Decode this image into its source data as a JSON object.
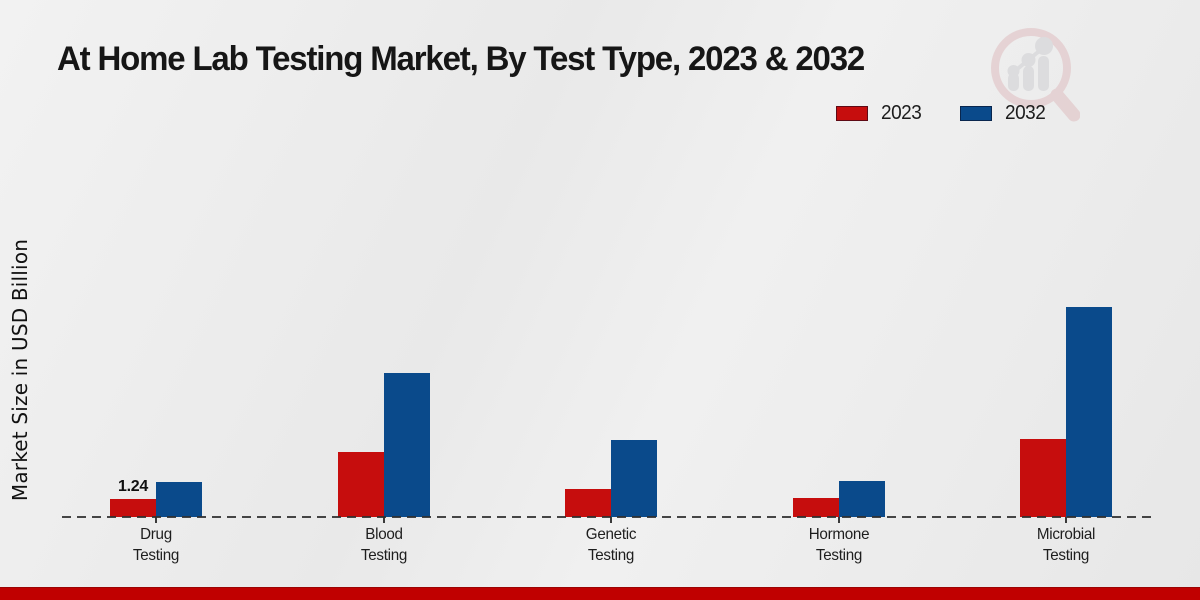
{
  "title": "At Home Lab Testing Market, By Test Type, 2023 & 2032",
  "y_axis_label": "Market Size in USD Billion",
  "legend": {
    "items": [
      {
        "label": "2023",
        "color": "#c60d0d"
      },
      {
        "label": "2032",
        "color": "#0a4a8b"
      }
    ]
  },
  "colors": {
    "bar_2023": "#c60d0d",
    "bar_2032": "#0a4a8b",
    "baseline": "#2e2e2e",
    "footer_stripe": "#c00000"
  },
  "chart_data": {
    "type": "bar",
    "title": "At Home Lab Testing Market, By Test Type, 2023 & 2032",
    "categories": [
      "Drug\nTesting",
      "Blood\nTesting",
      "Genetic\nTesting",
      "Hormone\nTesting",
      "Microbial\nTesting"
    ],
    "series": [
      {
        "name": "2023",
        "color": "#c60d0d",
        "values": [
          1.24,
          4.5,
          1.9,
          1.3,
          5.4
        ]
      },
      {
        "name": "2032",
        "color": "#0a4a8b",
        "values": [
          2.4,
          9.9,
          5.3,
          2.5,
          14.5
        ]
      }
    ],
    "xlabel": "",
    "ylabel": "Market Size in USD Billion",
    "ylim": [
      0,
      16
    ],
    "grid": false,
    "legend_position": "top-right",
    "baseline_style": "dashed",
    "data_labels": [
      {
        "series": "2023",
        "category_index": 0,
        "text": "1.24"
      }
    ]
  },
  "watermark": {
    "icon": "magnifier-bar-chart-logo"
  }
}
